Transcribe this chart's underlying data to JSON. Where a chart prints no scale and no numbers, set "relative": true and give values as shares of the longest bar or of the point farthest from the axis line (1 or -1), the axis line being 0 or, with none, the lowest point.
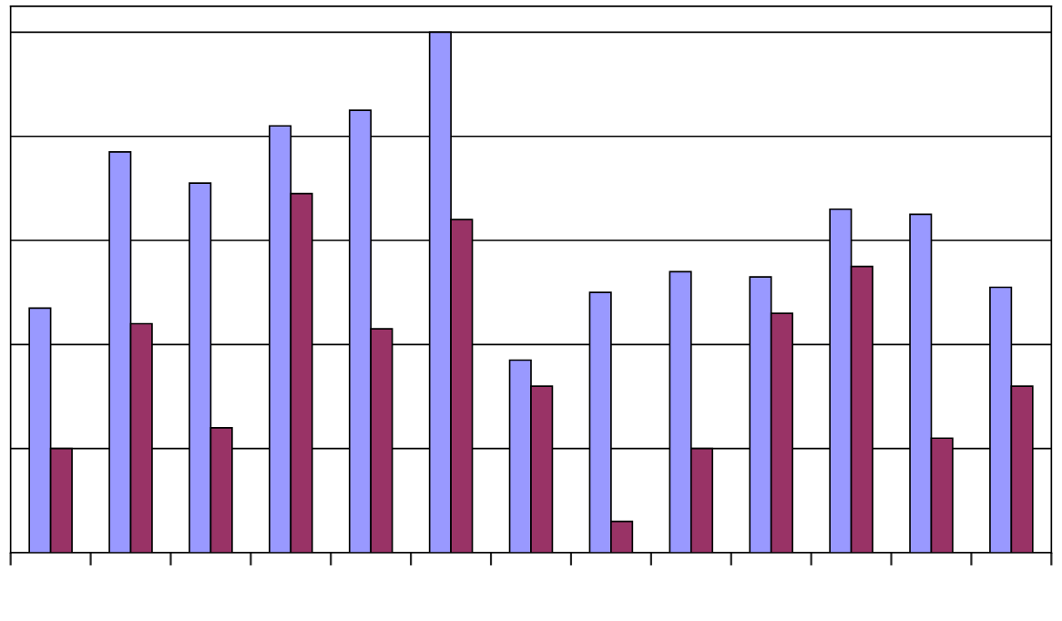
{
  "chart_data": {
    "type": "bar",
    "relative": true,
    "grid": "y",
    "categories": [
      null,
      null,
      null,
      null,
      null,
      null,
      null,
      null,
      null,
      null,
      null,
      null,
      null
    ],
    "series": [
      {
        "color": "#9999ff",
        "values": [
          0.47,
          0.77,
          0.71,
          0.82,
          0.85,
          1,
          0.37,
          0.5,
          0.54,
          0.53,
          0.66,
          0.65,
          0.51
        ]
      },
      {
        "color": "#993366",
        "values": [
          0.2,
          0.44,
          0.24,
          0.69,
          0.43,
          0.64,
          0.32,
          0.06,
          0.2,
          0.46,
          0.55,
          0.22,
          0.32
        ]
      }
    ]
  }
}
